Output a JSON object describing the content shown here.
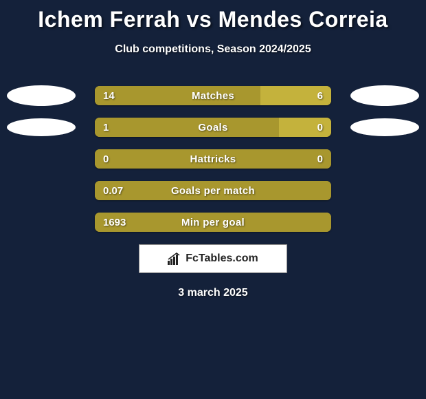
{
  "title": "Ichem Ferrah vs Mendes Correia",
  "subtitle": "Club competitions, Season 2024/2025",
  "brand": "FcTables.com",
  "date": "3 march 2025",
  "colors": {
    "background": "#14213a",
    "left_bar": "#a8972e",
    "right_bar": "#c4b23c",
    "text": "#ffffff",
    "brand_bg": "#ffffff",
    "brand_text": "#222222"
  },
  "typography": {
    "title_fontsize": 32,
    "subtitle_fontsize": 16,
    "label_fontsize": 15,
    "value_fontsize": 15,
    "date_fontsize": 16
  },
  "rows": [
    {
      "label": "Matches",
      "left": "14",
      "right": "6",
      "left_pct": 70,
      "right_pct": 30,
      "show_logos": true,
      "logo_small": false
    },
    {
      "label": "Goals",
      "left": "1",
      "right": "0",
      "left_pct": 78,
      "right_pct": 22,
      "show_logos": true,
      "logo_small": true
    },
    {
      "label": "Hattricks",
      "left": "0",
      "right": "0",
      "left_pct": 100,
      "right_pct": 0,
      "show_logos": false
    },
    {
      "label": "Goals per match",
      "left": "0.07",
      "right": "",
      "left_pct": 100,
      "right_pct": 0,
      "show_logos": false
    },
    {
      "label": "Min per goal",
      "left": "1693",
      "right": "",
      "left_pct": 100,
      "right_pct": 0,
      "show_logos": false
    }
  ]
}
